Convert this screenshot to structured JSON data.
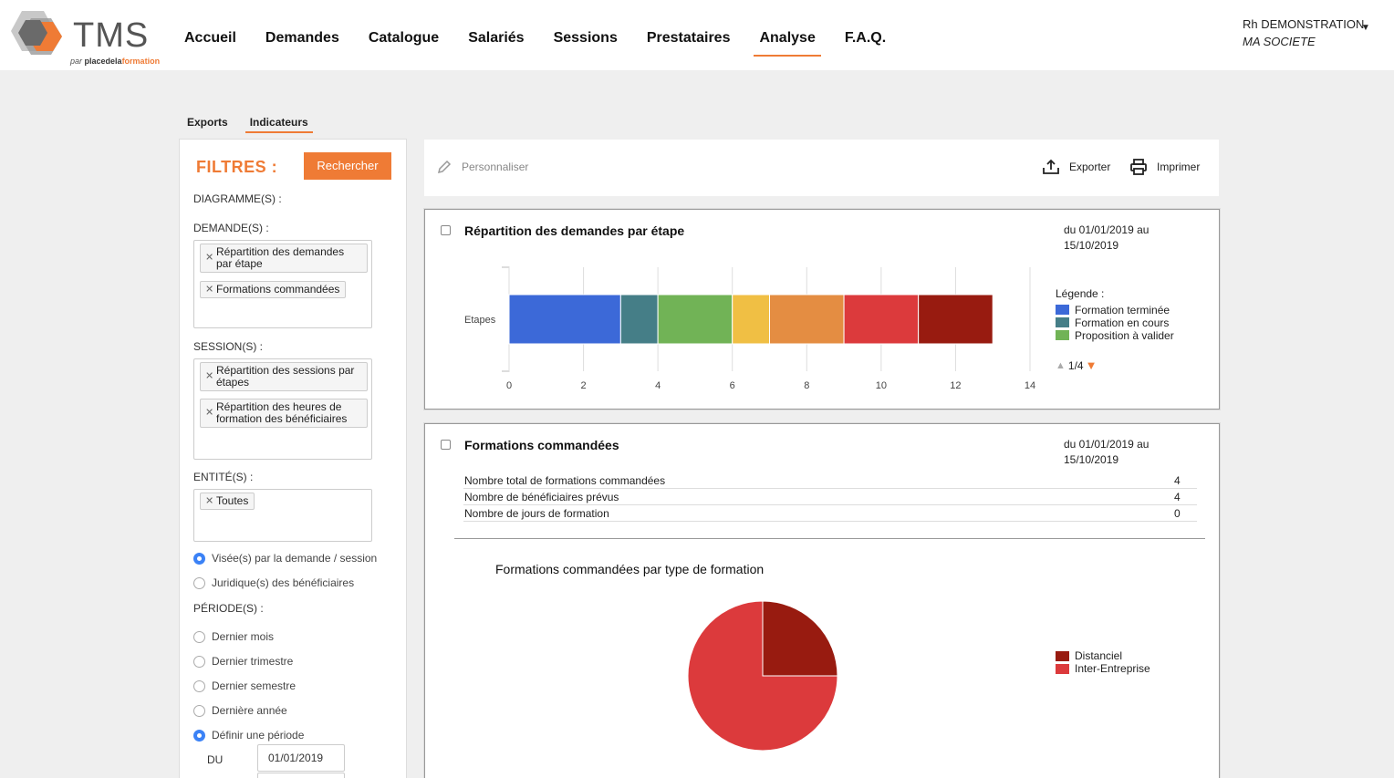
{
  "header": {
    "logo_text": "TMS",
    "logo_sub_prefix": "par",
    "logo_sub_brand_a": "placedela",
    "logo_sub_brand_b": "formation",
    "nav": [
      "Accueil",
      "Demandes",
      "Catalogue",
      "Salariés",
      "Sessions",
      "Prestataires",
      "Analyse",
      "F.A.Q."
    ],
    "active_nav": "Analyse",
    "user_name": "Rh DEMONSTRATION",
    "user_company": "MA SOCIETE"
  },
  "subtabs": [
    "Exports",
    "Indicateurs"
  ],
  "filters": {
    "title": "FILTRES :",
    "search_button": "Rechercher",
    "diagrammes_label": "DIAGRAMME(S) :",
    "demandes_label": "DEMANDE(S) :",
    "demandes_tags": [
      "Répartition des demandes par étape",
      "Formations commandées"
    ],
    "sessions_label": "SESSION(S) :",
    "sessions_tags": [
      "Répartition des sessions par étapes",
      "Répartition des heures de formation des bénéficiaires"
    ],
    "entites_label": "ENTITÉ(S) :",
    "entites_tags": [
      "Toutes"
    ],
    "entity_options": [
      "Visée(s) par la demande / session",
      "Juridique(s) des bénéficiaires"
    ],
    "periode_label": "PÉRIODE(S) :",
    "periode_options": [
      "Dernier mois",
      "Dernier trimestre",
      "Dernier semestre",
      "Dernière année",
      "Définir une période"
    ],
    "du_label": "DU",
    "du_value": "01/01/2019"
  },
  "toolbar": {
    "personnaliser": "Personnaliser",
    "exporter": "Exporter",
    "imprimer": "Imprimer"
  },
  "card1": {
    "title": "Répartition des demandes par étape",
    "date_line1": "du 01/01/2019 au",
    "date_line2": "15/10/2019",
    "legend_title": "Légende :",
    "legend_items": [
      "Formation terminée",
      "Formation en cours",
      "Proposition à valider"
    ],
    "pager": "1/4"
  },
  "card2": {
    "title": "Formations commandées",
    "date_line1": "du 01/01/2019 au",
    "date_line2": "15/10/2019",
    "kpis": [
      {
        "label": "Nombre total de formations commandées",
        "value": "4"
      },
      {
        "label": "Nombre de bénéficiaires prévus",
        "value": "4"
      },
      {
        "label": "Nombre de jours de formation",
        "value": "0"
      }
    ],
    "pie_title": "Formations commandées par type de formation",
    "pie_legend": [
      "Distanciel",
      "Inter-Entreprise"
    ]
  },
  "chart_data": [
    {
      "type": "bar",
      "orientation": "horizontal-stacked",
      "categories": [
        "Etapes"
      ],
      "series": [
        {
          "name": "Formation terminée",
          "values": [
            3
          ],
          "color": "#3c69d8"
        },
        {
          "name": "Formation en cours",
          "values": [
            1
          ],
          "color": "#457e87"
        },
        {
          "name": "Proposition à valider",
          "values": [
            2
          ],
          "color": "#71b356"
        },
        {
          "values": [
            1
          ],
          "color": "#f0bf44"
        },
        {
          "values": [
            2
          ],
          "color": "#e48d42"
        },
        {
          "values": [
            2
          ],
          "color": "#dc3a3c"
        },
        {
          "values": [
            2
          ],
          "color": "#981b10"
        }
      ],
      "xlim": [
        0,
        14
      ],
      "xticks": [
        0,
        2,
        4,
        6,
        8,
        10,
        12,
        14
      ],
      "grid": true,
      "legend_position": "right"
    },
    {
      "type": "pie",
      "title": "Formations commandées par type de formation",
      "categories": [
        "Distanciel",
        "Inter-Entreprise"
      ],
      "values": [
        1,
        3
      ],
      "colors": [
        "#981b10",
        "#dc3a3c"
      ],
      "legend_position": "right"
    }
  ]
}
